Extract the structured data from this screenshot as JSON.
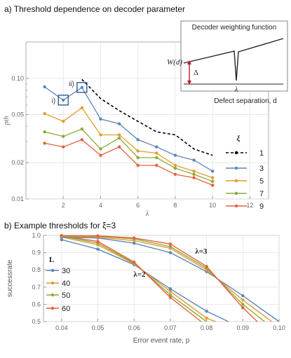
{
  "chart_data": [
    {
      "type": "line",
      "title": "a) Threshold dependence on decoder parameter",
      "xlabel": "λ",
      "ylabel": "pth",
      "xscale": "linear",
      "yscale": "log",
      "xlim": [
        0,
        13
      ],
      "ylim": [
        0.01,
        0.2
      ],
      "xticks": [
        "2",
        "4",
        "6",
        "8",
        "10",
        "12"
      ],
      "yticks": [
        "0.01",
        "0.02",
        "0.05",
        "0.10"
      ],
      "grid": true,
      "legend_title": "ξ",
      "legend_position": "right",
      "series": [
        {
          "name": "1",
          "color": "#000000",
          "style": "dashed",
          "x": [
            3,
            4,
            5,
            6,
            7,
            8,
            9,
            10
          ],
          "values": [
            0.098,
            0.068,
            0.054,
            0.044,
            0.036,
            0.034,
            0.026,
            0.023
          ]
        },
        {
          "name": "3",
          "color": "#5b86bb",
          "x": [
            1,
            2,
            3,
            4,
            5,
            6,
            7,
            8,
            9,
            10
          ],
          "values": [
            0.085,
            0.066,
            0.084,
            0.046,
            0.042,
            0.031,
            0.027,
            0.023,
            0.021,
            0.017
          ]
        },
        {
          "name": "5",
          "color": "#e39c2c",
          "x": [
            1,
            2,
            3,
            4,
            5,
            6,
            7,
            8,
            9,
            10
          ],
          "values": [
            0.051,
            0.044,
            0.057,
            0.034,
            0.034,
            0.025,
            0.024,
            0.019,
            0.017,
            0.015
          ]
        },
        {
          "name": "7",
          "color": "#8daa3a",
          "x": [
            1,
            2,
            3,
            4,
            5,
            6,
            7,
            8,
            9,
            10
          ],
          "values": [
            0.036,
            0.033,
            0.038,
            0.026,
            0.032,
            0.022,
            0.022,
            0.018,
            0.016,
            0.014
          ]
        },
        {
          "name": "9",
          "color": "#e6603b",
          "x": [
            1,
            2,
            3,
            4,
            5,
            6,
            7,
            8,
            9,
            10
          ],
          "values": [
            0.029,
            0.027,
            0.031,
            0.023,
            0.027,
            0.019,
            0.019,
            0.016,
            0.015,
            0.013
          ]
        }
      ],
      "annotations": [
        {
          "text": "i)",
          "x": 2,
          "y": 0.066
        },
        {
          "text": "ii)",
          "x": 3,
          "y": 0.084
        }
      ],
      "inset": {
        "title": "Decoder weighting function",
        "ylabel": "W(d)",
        "xlabel": "Defect separation, d",
        "delta_label": "Δ",
        "lambda_label": "λ"
      }
    },
    {
      "type": "line",
      "title": "b) Example thresholds for ξ=3",
      "xlabel": "Error event rate, p",
      "ylabel": "successrate",
      "xlim": [
        0.035,
        0.1
      ],
      "ylim": [
        0.5,
        1.0
      ],
      "xticks": [
        "0.04",
        "0.05",
        "0.06",
        "0.07",
        "0.08",
        "0.09",
        "0.10"
      ],
      "yticks": [
        "0.5",
        "0.6",
        "0.7",
        "0.8",
        "0.9",
        "1.0"
      ],
      "grid": true,
      "legend_title": "L",
      "legend_position": "left",
      "annotations": [
        {
          "text": "λ=2",
          "x": 0.0615,
          "y": 0.76
        },
        {
          "text": "λ=3",
          "x": 0.0785,
          "y": 0.895
        }
      ],
      "series": [
        {
          "name": "30",
          "group": "λ=2",
          "color": "#5b86bb",
          "x": [
            0.04,
            0.05,
            0.06,
            0.07,
            0.08,
            0.086
          ],
          "values": [
            0.975,
            0.92,
            0.83,
            0.69,
            0.56,
            0.5
          ]
        },
        {
          "name": "40",
          "group": "λ=2",
          "color": "#e39c2c",
          "x": [
            0.04,
            0.05,
            0.06,
            0.07,
            0.08,
            0.0825
          ],
          "values": [
            0.99,
            0.945,
            0.835,
            0.675,
            0.52,
            0.5
          ]
        },
        {
          "name": "50",
          "group": "λ=2",
          "color": "#8daa3a",
          "x": [
            0.04,
            0.05,
            0.06,
            0.07,
            0.08
          ],
          "values": [
            0.995,
            0.955,
            0.84,
            0.655,
            0.5
          ]
        },
        {
          "name": "60",
          "group": "λ=2",
          "color": "#e6603b",
          "x": [
            0.04,
            0.05,
            0.06,
            0.07,
            0.0785
          ],
          "values": [
            0.998,
            0.965,
            0.845,
            0.64,
            0.5
          ]
        },
        {
          "name": "30",
          "group": "λ=3",
          "color": "#5b86bb",
          "x": [
            0.04,
            0.05,
            0.06,
            0.07,
            0.08,
            0.09,
            0.1
          ],
          "values": [
            0.99,
            0.985,
            0.955,
            0.9,
            0.79,
            0.65,
            0.5
          ]
        },
        {
          "name": "40",
          "group": "λ=3",
          "color": "#e39c2c",
          "x": [
            0.04,
            0.05,
            0.06,
            0.07,
            0.08,
            0.09,
            0.098
          ],
          "values": [
            0.995,
            0.99,
            0.97,
            0.925,
            0.8,
            0.625,
            0.5
          ]
        },
        {
          "name": "50",
          "group": "λ=3",
          "color": "#8daa3a",
          "x": [
            0.04,
            0.05,
            0.06,
            0.07,
            0.08,
            0.09,
            0.096
          ],
          "values": [
            0.998,
            0.995,
            0.98,
            0.935,
            0.81,
            0.6,
            0.5
          ]
        },
        {
          "name": "60",
          "group": "λ=3",
          "color": "#e6603b",
          "x": [
            0.04,
            0.05,
            0.06,
            0.07,
            0.08,
            0.09,
            0.094
          ],
          "values": [
            0.999,
            0.997,
            0.985,
            0.95,
            0.82,
            0.58,
            0.5
          ]
        }
      ]
    }
  ]
}
